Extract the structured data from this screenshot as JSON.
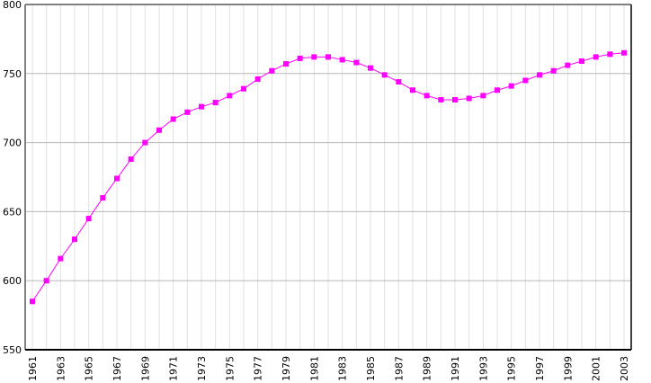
{
  "chart_data": {
    "type": "line",
    "title": "",
    "xlabel": "",
    "ylabel": "",
    "ylim": [
      550,
      800
    ],
    "yticks": [
      550,
      600,
      650,
      700,
      750,
      800
    ],
    "grid": true,
    "x": [
      1961,
      1962,
      1963,
      1964,
      1965,
      1966,
      1967,
      1968,
      1969,
      1970,
      1971,
      1972,
      1973,
      1974,
      1975,
      1976,
      1977,
      1978,
      1979,
      1980,
      1981,
      1982,
      1983,
      1984,
      1985,
      1986,
      1987,
      1988,
      1989,
      1990,
      1991,
      1992,
      1993,
      1994,
      1995,
      1996,
      1997,
      1998,
      1999,
      2000,
      2001,
      2002,
      2003
    ],
    "xtick_labels": [
      "1961",
      "1963",
      "1965",
      "1967",
      "1969",
      "1971",
      "1973",
      "1975",
      "1977",
      "1979",
      "1981",
      "1983",
      "1985",
      "1987",
      "1989",
      "1991",
      "1993",
      "1995",
      "1997",
      "1999",
      "2001",
      "2003"
    ],
    "series": [
      {
        "name": "",
        "color": "#ff00ff",
        "marker": "square",
        "values": [
          585,
          600,
          616,
          630,
          645,
          660,
          674,
          688,
          700,
          709,
          717,
          722,
          726,
          729,
          734,
          739,
          746,
          752,
          757,
          761,
          762,
          762,
          760,
          758,
          754,
          749,
          744,
          738,
          734,
          731,
          731,
          732,
          734,
          738,
          741,
          745,
          749,
          752,
          756,
          759,
          762,
          764,
          765
        ]
      }
    ]
  }
}
